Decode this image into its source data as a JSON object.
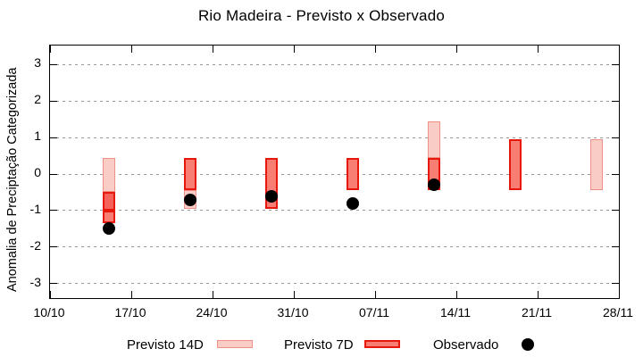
{
  "chart_data": {
    "type": "range-bar",
    "title": "Rio Madeira - Previsto x Observado",
    "ylabel": "Anomalia de Preciptação Categorizada",
    "xlabel": "",
    "ylim": [
      -3.5,
      3.5
    ],
    "grid": "horizontal-dashed",
    "legend_position": "bottom",
    "x_tick_labels": [
      "10/10",
      "17/10",
      "24/10",
      "31/10",
      "07/11",
      "14/11",
      "21/11",
      "28/11"
    ],
    "y_tick_values": [
      3,
      2,
      1,
      0,
      -1,
      -2,
      -3
    ],
    "y_tick_labels": [
      "3",
      "2",
      "1",
      "0",
      "-1",
      "-2",
      "-3"
    ],
    "groups": [
      {
        "date": "15/10",
        "segments": [
          {
            "series": "previsto_14d",
            "top": 0.45,
            "bottom": -0.5
          },
          {
            "series": "overlap_7d_14d",
            "top": -0.5,
            "bottom": -1.0
          },
          {
            "series": "previsto_7d",
            "top": -1.0,
            "bottom": -1.35
          }
        ],
        "observado": -1.5
      },
      {
        "date": "22/10",
        "segments": [
          {
            "series": "previsto_7d",
            "top": 0.45,
            "bottom": -0.45
          },
          {
            "series": "previsto_14d",
            "top": -0.45,
            "bottom": -0.95
          }
        ],
        "observado": -0.7
      },
      {
        "date": "29/10",
        "segments": [
          {
            "series": "previsto_7d",
            "top": 0.45,
            "bottom": -0.95
          }
        ],
        "observado": -0.6
      },
      {
        "date": "05/11",
        "segments": [
          {
            "series": "previsto_7d",
            "top": 0.45,
            "bottom": -0.45
          }
        ],
        "observado": -0.8
      },
      {
        "date": "12/11",
        "segments": [
          {
            "series": "previsto_14d",
            "top": 1.45,
            "bottom": 0.45
          },
          {
            "series": "previsto_7d",
            "top": 0.45,
            "bottom": -0.45
          }
        ],
        "observado": -0.3
      },
      {
        "date": "19/11",
        "segments": [
          {
            "series": "previsto_7d",
            "top": 0.95,
            "bottom": -0.45
          }
        ],
        "observado": null
      },
      {
        "date": "26/11",
        "segments": [
          {
            "series": "previsto_14d",
            "top": 0.95,
            "bottom": -0.45
          }
        ],
        "observado": null
      }
    ],
    "colors": {
      "previsto_14d_fill": "#f9cdc5",
      "previsto_14d_border": "#ef9086",
      "previsto_7d_fill": "#f87e74",
      "previsto_7d_border": "#e8170b",
      "overlap_fill": "#f4625a",
      "observado": "#000000",
      "grid": "#999999",
      "frame": "#000000"
    }
  },
  "legend": {
    "items": [
      {
        "label": "Previsto 14D",
        "swatch": "pink-box"
      },
      {
        "label": "Previsto 7D",
        "swatch": "red-box"
      },
      {
        "label": "Observado",
        "swatch": "black-dot"
      }
    ]
  }
}
